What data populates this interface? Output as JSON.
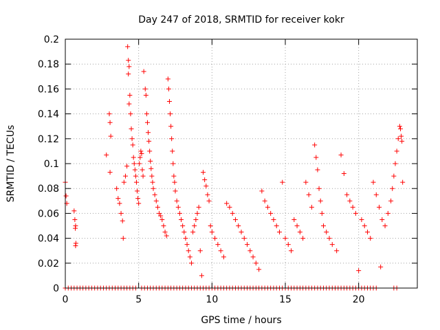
{
  "chart_data": {
    "type": "scatter",
    "title": "Day 247 of 2018, SRMTID for receiver kokr",
    "xlabel": "GPS time / hours",
    "ylabel": "SRMTID / TECUs",
    "xlim": [
      0,
      24
    ],
    "ylim": [
      0,
      0.2
    ],
    "xticks": [
      0,
      5,
      10,
      15,
      20
    ],
    "xtick_labels": [
      "0",
      "5",
      "10",
      "15",
      "20"
    ],
    "yticks": [
      0,
      0.02,
      0.04,
      0.06,
      0.08,
      0.1,
      0.12,
      0.14,
      0.16,
      0.18,
      0.2
    ],
    "ytick_labels": [
      "0",
      "0.02",
      "0.04",
      "0.06",
      "0.08",
      "0.1",
      "0.12",
      "0.14",
      "0.16",
      "0.18",
      "0.2"
    ],
    "grid": true,
    "marker": "+",
    "marker_color": "#ff0000",
    "series": [
      {
        "name": "SRMTID",
        "points": [
          [
            0.0,
            0.085
          ],
          [
            0.05,
            0.074
          ],
          [
            0.1,
            0.068
          ],
          [
            0.6,
            0.062
          ],
          [
            0.65,
            0.055
          ],
          [
            0.7,
            0.05
          ],
          [
            0.68,
            0.048
          ],
          [
            0.72,
            0.036
          ],
          [
            0.7,
            0.034
          ],
          [
            2.8,
            0.107
          ],
          [
            3.0,
            0.14
          ],
          [
            3.05,
            0.133
          ],
          [
            3.1,
            0.122
          ],
          [
            3.05,
            0.093
          ],
          [
            3.5,
            0.08
          ],
          [
            3.6,
            0.072
          ],
          [
            3.7,
            0.068
          ],
          [
            3.8,
            0.06
          ],
          [
            3.9,
            0.054
          ],
          [
            3.95,
            0.04
          ],
          [
            4.0,
            0.085
          ],
          [
            4.1,
            0.09
          ],
          [
            4.2,
            0.098
          ],
          [
            4.25,
            0.194
          ],
          [
            4.3,
            0.183
          ],
          [
            4.35,
            0.178
          ],
          [
            4.3,
            0.172
          ],
          [
            4.4,
            0.155
          ],
          [
            4.35,
            0.148
          ],
          [
            4.45,
            0.14
          ],
          [
            4.5,
            0.128
          ],
          [
            4.55,
            0.12
          ],
          [
            4.6,
            0.115
          ],
          [
            4.65,
            0.105
          ],
          [
            4.7,
            0.1
          ],
          [
            4.75,
            0.095
          ],
          [
            4.8,
            0.09
          ],
          [
            4.85,
            0.085
          ],
          [
            4.9,
            0.078
          ],
          [
            4.95,
            0.072
          ],
          [
            5.0,
            0.068
          ],
          [
            5.05,
            0.1
          ],
          [
            5.1,
            0.105
          ],
          [
            5.15,
            0.11
          ],
          [
            5.2,
            0.108
          ],
          [
            5.25,
            0.095
          ],
          [
            5.3,
            0.09
          ],
          [
            5.35,
            0.174
          ],
          [
            5.45,
            0.16
          ],
          [
            5.5,
            0.155
          ],
          [
            5.55,
            0.14
          ],
          [
            5.6,
            0.133
          ],
          [
            5.65,
            0.125
          ],
          [
            5.7,
            0.118
          ],
          [
            5.75,
            0.11
          ],
          [
            5.8,
            0.102
          ],
          [
            5.85,
            0.096
          ],
          [
            5.9,
            0.09
          ],
          [
            5.95,
            0.085
          ],
          [
            6.0,
            0.08
          ],
          [
            6.1,
            0.075
          ],
          [
            6.2,
            0.07
          ],
          [
            6.3,
            0.065
          ],
          [
            6.4,
            0.06
          ],
          [
            6.5,
            0.058
          ],
          [
            6.6,
            0.055
          ],
          [
            6.7,
            0.05
          ],
          [
            6.8,
            0.045
          ],
          [
            6.9,
            0.042
          ],
          [
            7.0,
            0.168
          ],
          [
            7.05,
            0.16
          ],
          [
            7.1,
            0.15
          ],
          [
            7.15,
            0.14
          ],
          [
            7.2,
            0.13
          ],
          [
            7.25,
            0.12
          ],
          [
            7.3,
            0.11
          ],
          [
            7.35,
            0.1
          ],
          [
            7.4,
            0.09
          ],
          [
            7.45,
            0.085
          ],
          [
            7.5,
            0.078
          ],
          [
            7.6,
            0.07
          ],
          [
            7.7,
            0.065
          ],
          [
            7.8,
            0.06
          ],
          [
            7.9,
            0.055
          ],
          [
            8.0,
            0.05
          ],
          [
            8.1,
            0.045
          ],
          [
            8.2,
            0.04
          ],
          [
            8.3,
            0.035
          ],
          [
            8.4,
            0.03
          ],
          [
            8.5,
            0.025
          ],
          [
            8.6,
            0.02
          ],
          [
            8.7,
            0.045
          ],
          [
            8.8,
            0.05
          ],
          [
            8.9,
            0.055
          ],
          [
            9.0,
            0.06
          ],
          [
            9.1,
            0.065
          ],
          [
            9.2,
            0.03
          ],
          [
            9.3,
            0.01
          ],
          [
            9.4,
            0.093
          ],
          [
            9.5,
            0.087
          ],
          [
            9.6,
            0.082
          ],
          [
            9.7,
            0.075
          ],
          [
            9.8,
            0.07
          ],
          [
            9.9,
            0.05
          ],
          [
            10.0,
            0.045
          ],
          [
            10.2,
            0.04
          ],
          [
            10.4,
            0.035
          ],
          [
            10.6,
            0.03
          ],
          [
            10.8,
            0.025
          ],
          [
            11.0,
            0.068
          ],
          [
            11.2,
            0.065
          ],
          [
            11.4,
            0.06
          ],
          [
            11.6,
            0.055
          ],
          [
            11.8,
            0.05
          ],
          [
            12.0,
            0.045
          ],
          [
            12.2,
            0.04
          ],
          [
            12.4,
            0.035
          ],
          [
            12.6,
            0.03
          ],
          [
            12.8,
            0.025
          ],
          [
            13.0,
            0.02
          ],
          [
            13.2,
            0.015
          ],
          [
            13.4,
            0.078
          ],
          [
            13.6,
            0.07
          ],
          [
            13.8,
            0.065
          ],
          [
            14.0,
            0.06
          ],
          [
            14.2,
            0.055
          ],
          [
            14.4,
            0.05
          ],
          [
            14.6,
            0.045
          ],
          [
            14.8,
            0.085
          ],
          [
            15.0,
            0.04
          ],
          [
            15.2,
            0.035
          ],
          [
            15.4,
            0.03
          ],
          [
            15.6,
            0.055
          ],
          [
            15.8,
            0.05
          ],
          [
            16.0,
            0.045
          ],
          [
            16.2,
            0.04
          ],
          [
            16.4,
            0.085
          ],
          [
            16.6,
            0.075
          ],
          [
            16.8,
            0.065
          ],
          [
            17.0,
            0.115
          ],
          [
            17.1,
            0.105
          ],
          [
            17.2,
            0.095
          ],
          [
            17.3,
            0.08
          ],
          [
            17.4,
            0.07
          ],
          [
            17.5,
            0.06
          ],
          [
            17.6,
            0.05
          ],
          [
            17.8,
            0.045
          ],
          [
            18.0,
            0.04
          ],
          [
            18.2,
            0.035
          ],
          [
            18.5,
            0.03
          ],
          [
            18.8,
            0.107
          ],
          [
            19.0,
            0.092
          ],
          [
            19.2,
            0.075
          ],
          [
            19.4,
            0.07
          ],
          [
            19.6,
            0.065
          ],
          [
            19.8,
            0.06
          ],
          [
            20.0,
            0.014
          ],
          [
            20.2,
            0.055
          ],
          [
            20.4,
            0.05
          ],
          [
            20.6,
            0.045
          ],
          [
            20.8,
            0.04
          ],
          [
            21.0,
            0.085
          ],
          [
            21.2,
            0.075
          ],
          [
            21.4,
            0.065
          ],
          [
            21.5,
            0.017
          ],
          [
            21.6,
            0.055
          ],
          [
            21.8,
            0.05
          ],
          [
            22.0,
            0.06
          ],
          [
            22.2,
            0.07
          ],
          [
            22.3,
            0.08
          ],
          [
            22.4,
            0.09
          ],
          [
            22.5,
            0.1
          ],
          [
            22.6,
            0.11
          ],
          [
            22.7,
            0.12
          ],
          [
            22.8,
            0.13
          ],
          [
            22.85,
            0.128
          ],
          [
            22.9,
            0.122
          ],
          [
            22.95,
            0.118
          ],
          [
            23.0,
            0.085
          ]
        ],
        "zero_points_x": [
          0.0,
          0.2,
          0.4,
          0.6,
          0.8,
          1.0,
          1.2,
          1.4,
          1.6,
          1.8,
          2.0,
          2.2,
          2.4,
          2.6,
          2.8,
          3.0,
          3.2,
          3.4,
          3.6,
          3.8,
          4.0,
          4.2,
          4.4,
          4.6,
          4.8,
          5.2,
          5.4,
          5.6,
          5.8,
          6.0,
          6.2,
          6.4,
          6.6,
          6.8,
          7.0,
          7.2,
          7.4,
          7.6,
          7.8,
          8.0,
          8.2,
          8.4,
          8.6,
          8.8,
          9.0,
          9.2,
          9.4,
          9.6,
          9.8,
          10.0,
          10.2,
          10.4,
          10.6,
          10.8,
          11.0,
          11.2,
          11.4,
          11.6,
          11.8,
          12.0,
          12.2,
          12.4,
          12.6,
          12.8,
          13.0,
          13.2,
          13.4,
          13.6,
          13.8,
          14.0,
          14.2,
          14.4,
          14.6,
          14.8,
          15.0,
          15.2,
          15.4,
          15.6,
          15.8,
          16.0,
          16.2,
          16.4,
          16.6,
          16.8,
          17.0,
          17.2,
          17.4,
          17.6,
          17.8,
          18.0,
          18.2,
          18.4,
          18.6,
          18.8,
          19.0,
          19.2,
          19.4,
          19.6,
          19.8,
          20.0,
          20.2,
          20.4,
          20.6,
          20.8,
          21.0,
          21.2,
          22.4,
          22.6
        ]
      }
    ]
  }
}
